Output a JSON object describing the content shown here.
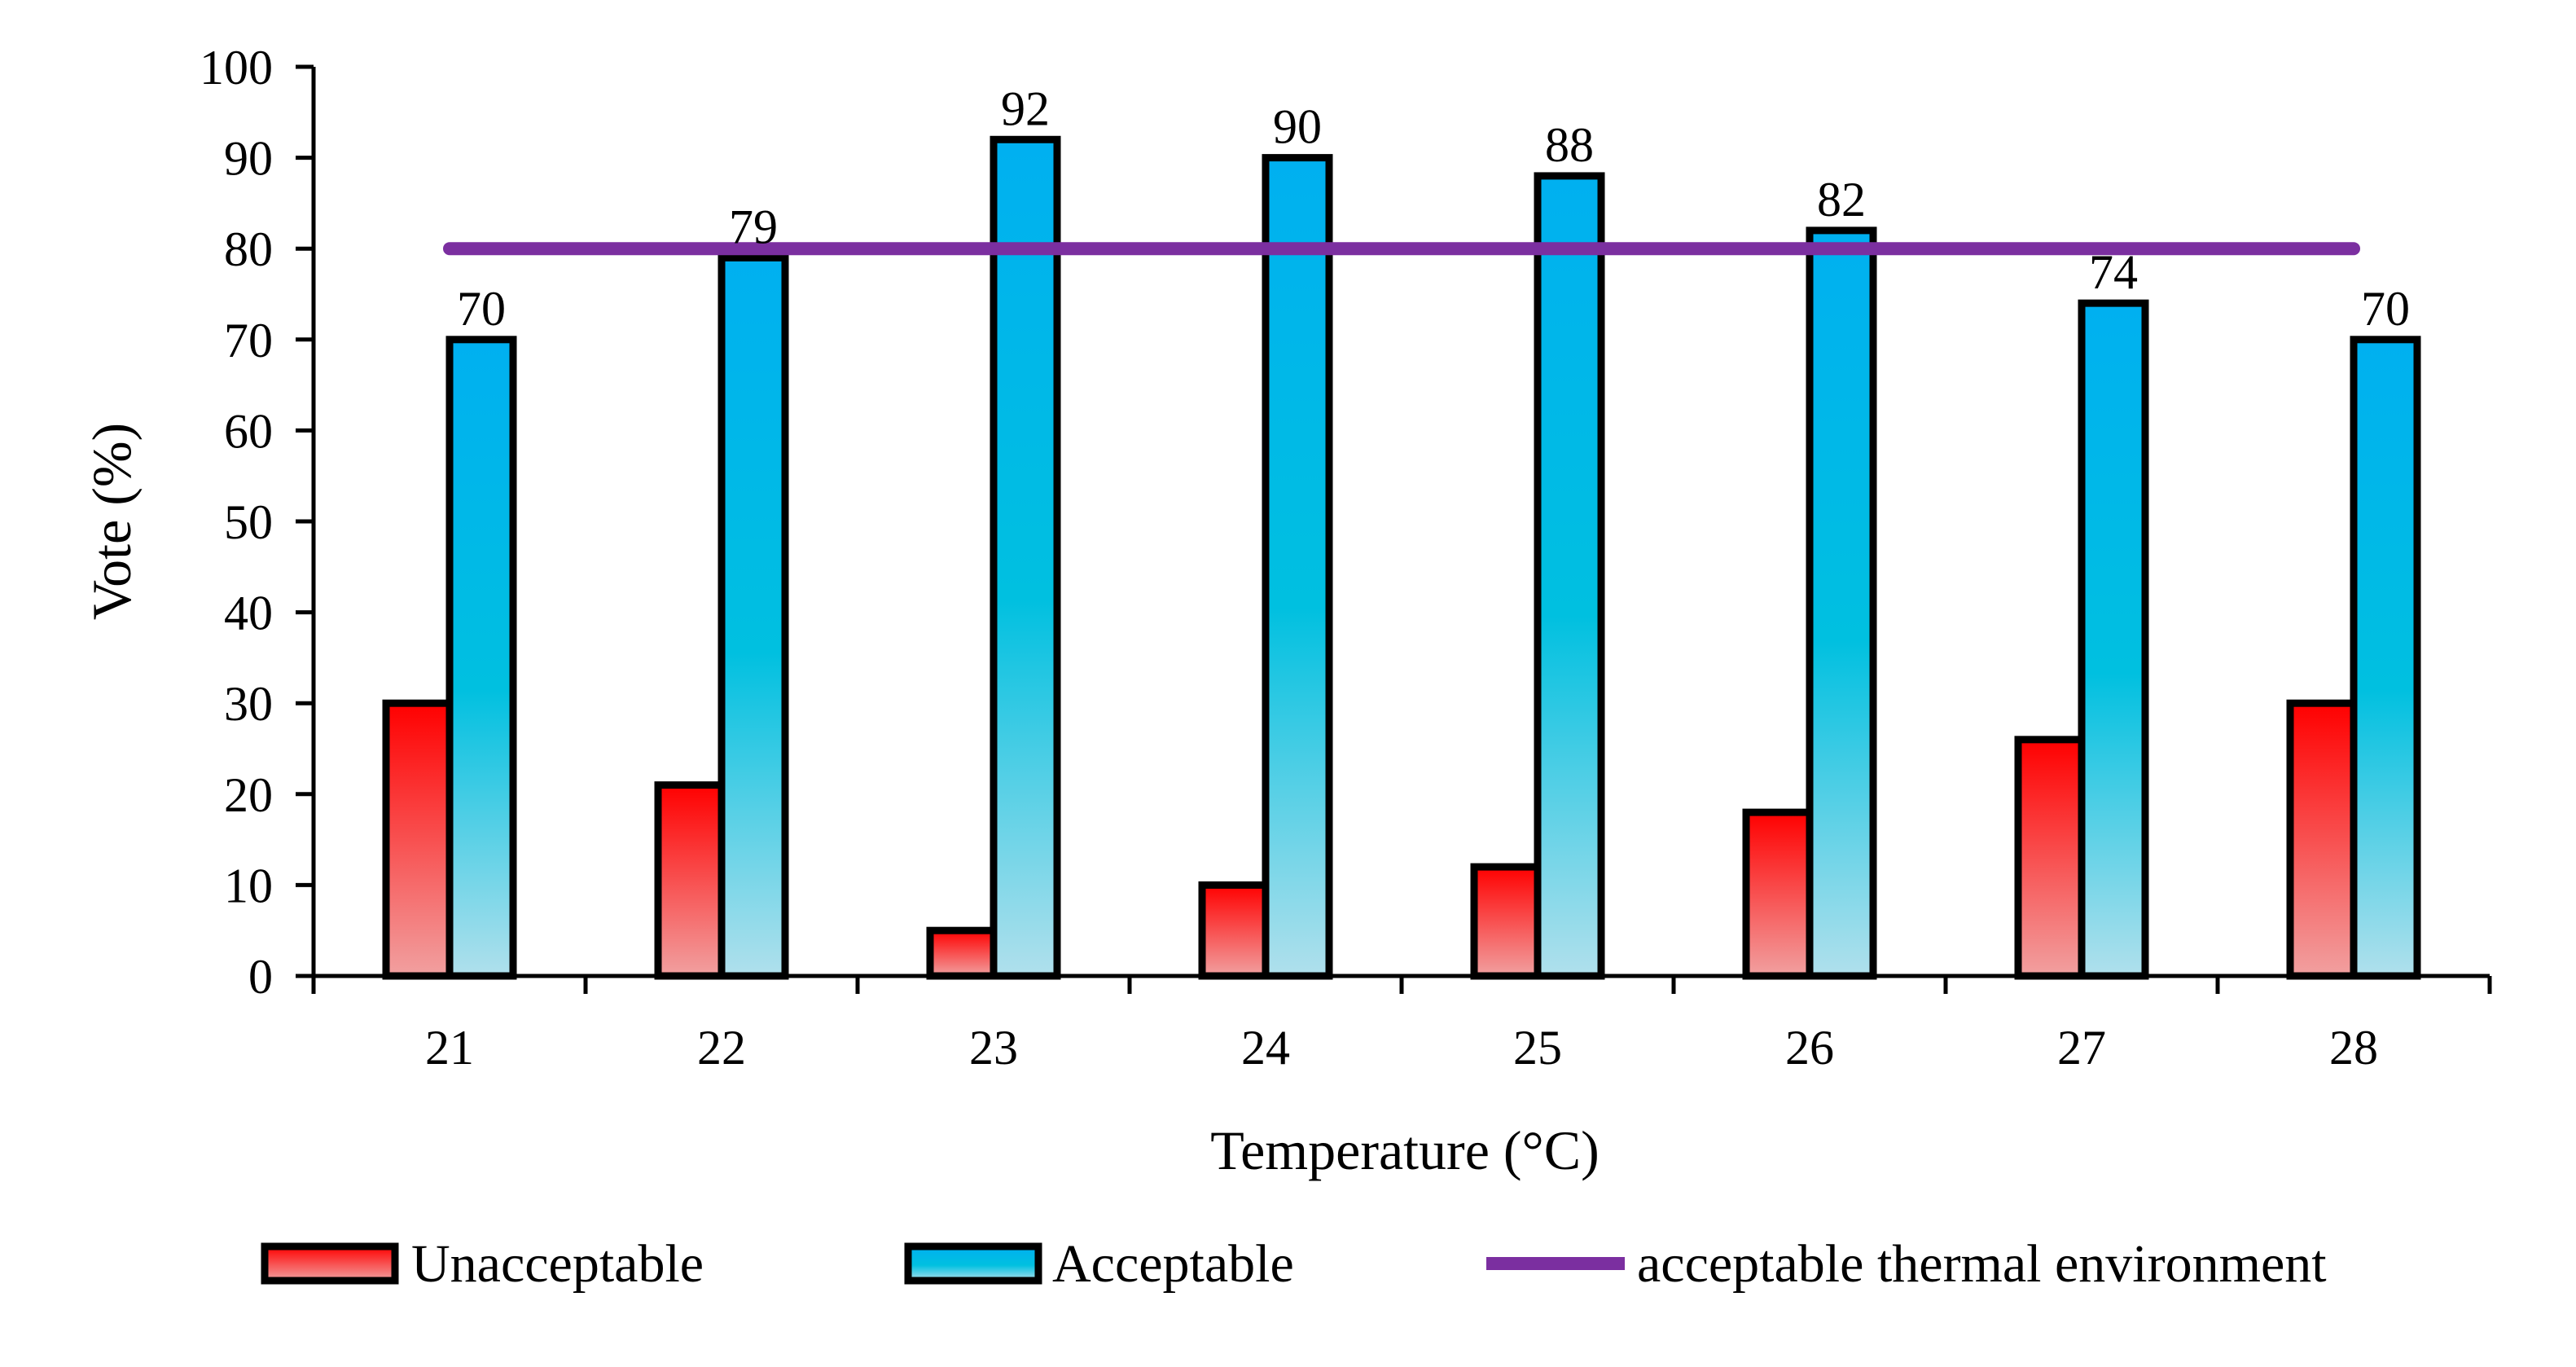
{
  "chart_data": {
    "type": "bar",
    "title": "",
    "xlabel": "Temperature (°C)",
    "ylabel": "Vote (%)",
    "ylim": [
      0,
      100
    ],
    "ytick_step": 10,
    "categories": [
      "21",
      "22",
      "23",
      "24",
      "25",
      "26",
      "27",
      "28"
    ],
    "series": [
      {
        "name": "Unacceptable",
        "values": [
          30,
          21,
          5,
          10,
          12,
          18,
          26,
          30
        ],
        "show_labels": false
      },
      {
        "name": "Acceptable",
        "values": [
          70,
          79,
          92,
          90,
          88,
          82,
          74,
          70
        ],
        "show_labels": true
      }
    ],
    "reference_line": {
      "name": "acceptable thermal environment",
      "value": 80,
      "color": "#7B2FA0"
    },
    "legend_position": "bottom",
    "colors": {
      "unacceptable_top": "#FF0000",
      "unacceptable_bottom": "#F1A0A0",
      "acceptable_top": "#00B0F0",
      "acceptable_mid": "#00C0E0",
      "acceptable_bottom": "#B0E0EC",
      "bar_outline": "#000000"
    }
  },
  "legend": {
    "unacceptable": "Unacceptable",
    "acceptable": "Acceptable",
    "threshold": "acceptable thermal environment"
  }
}
